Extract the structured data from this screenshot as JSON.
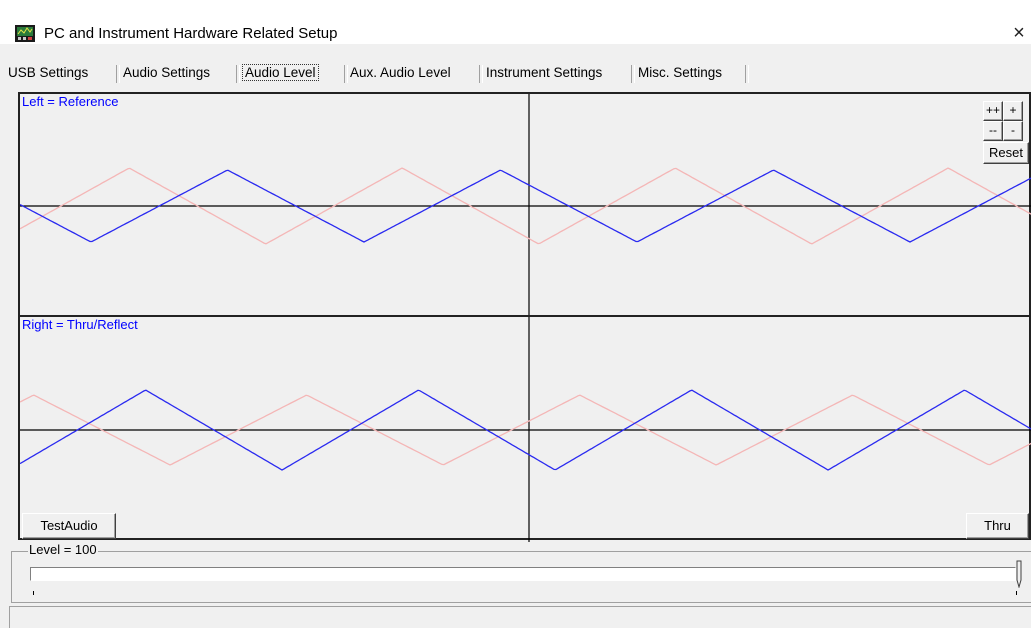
{
  "window": {
    "title": "PC and Instrument Hardware Related Setup",
    "close_symbol": "×",
    "app_icon": "instrument-icon"
  },
  "tabs": [
    {
      "label": "USB Settings",
      "active": false
    },
    {
      "label": "Audio Settings",
      "active": false
    },
    {
      "label": "Audio Level",
      "active": true
    },
    {
      "label": "Aux. Audio Level",
      "active": false
    },
    {
      "label": "Instrument Settings",
      "active": false
    },
    {
      "label": "Misc. Settings",
      "active": false
    }
  ],
  "scope_top": {
    "label": "Left = Reference",
    "zoom_buttons": {
      "zoom_in_fast": "++",
      "zoom_in": "+",
      "zoom_out_fast": "--",
      "zoom_out": "-",
      "reset": "Reset"
    }
  },
  "scope_bottom": {
    "label": "Right = Thru/Reflect",
    "test_audio_button": "TestAudio",
    "mode_button": "Thru"
  },
  "level": {
    "label": "Level = 100",
    "value": 100,
    "max": 100
  },
  "colors": {
    "primary_trace": "#2a2af0",
    "secondary_trace": "#f4b6b6",
    "label_text": "#0000ff",
    "background": "#f0f0f0"
  }
}
